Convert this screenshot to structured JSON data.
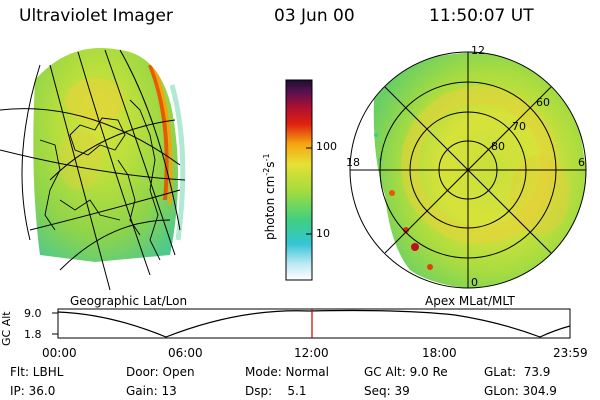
{
  "header": {
    "title": "Ultraviolet Imager",
    "date": "03 Jun 00",
    "time": "11:50:07 UT"
  },
  "panels": {
    "left_caption": "Geographic Lat/Lon",
    "right_caption": "Apex MLat/MLT",
    "mlt_labels": [
      "12",
      "18",
      "6",
      "0"
    ],
    "mlat_labels": [
      "60",
      "70",
      "80"
    ]
  },
  "colorbar": {
    "label": "photon cm",
    "label_sup1": "-2",
    "label_s": "s",
    "label_sup2": "-1",
    "ticks": [
      "100",
      "10"
    ]
  },
  "altitude_plot": {
    "ylabel": "GC Alt",
    "yticks": [
      "9.0",
      "1.8"
    ],
    "xticks": [
      "00:00",
      "06:00",
      "12:00",
      "18:00",
      "23:59"
    ],
    "marker_color": "#cc0000"
  },
  "info": {
    "flt": "Flt: LBHL",
    "ip": "IP: 36.0",
    "door": "Door: Open",
    "gain": "Gain: 13",
    "mode": "Mode: Normal",
    "dsp": "Dsp:    5.1",
    "gcalt": "GC Alt: 9.0 Re",
    "seq": "Seq: 39",
    "glat": "GLat:  73.9",
    "glon": "GLon: 304.9"
  }
}
